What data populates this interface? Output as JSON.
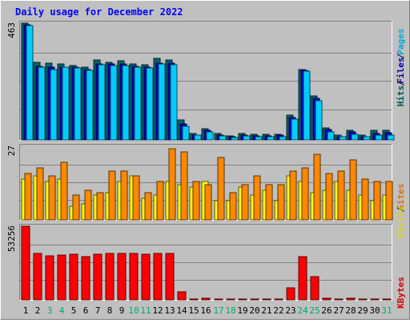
{
  "chart_data": {
    "type": "bar",
    "title": "Daily usage for December 2022",
    "days": [
      "1",
      "2",
      "3",
      "4",
      "5",
      "6",
      "7",
      "8",
      "9",
      "10",
      "11",
      "12",
      "13",
      "14",
      "15",
      "16",
      "17",
      "18",
      "19",
      "20",
      "21",
      "22",
      "23",
      "24",
      "25",
      "26",
      "27",
      "28",
      "29",
      "30",
      "31"
    ],
    "weekend_days": [
      "3",
      "4",
      "10",
      "11",
      "17",
      "18",
      "24",
      "25",
      "31"
    ],
    "panels": [
      {
        "id": "hits",
        "max_label": "463",
        "ylim": [
          0,
          463
        ],
        "legend": [
          "Pages",
          "Files",
          "Hits"
        ],
        "series": [
          {
            "name": "Hits",
            "color": "#006666",
            "values": [
              463,
              307,
              303,
              302,
              294,
              290,
              317,
              309,
              315,
              300,
              298,
              325,
              318,
              78,
              24,
              45,
              25,
              16,
              24,
              22,
              21,
              22,
              98,
              280,
              174,
              48,
              20,
              39,
              20,
              37,
              37
            ]
          },
          {
            "name": "Files",
            "color": "#0000cc",
            "values": [
              458,
              293,
              287,
              290,
              288,
              280,
              302,
              300,
              302,
              293,
              290,
              304,
              303,
              62,
              20,
              38,
              20,
              12,
              20,
              16,
              16,
              18,
              88,
              277,
              164,
              41,
              13,
              32,
              13,
              25,
              27
            ]
          },
          {
            "name": "Pages",
            "color": "#00ccff",
            "values": [
              455,
              287,
              280,
              287,
              285,
              275,
              297,
              294,
              296,
              290,
              286,
              302,
              297,
              55,
              18,
              32,
              16,
              10,
              16,
              14,
              13,
              13,
              82,
              273,
              155,
              33,
              12,
              23,
              12,
              18,
              20
            ]
          }
        ]
      },
      {
        "id": "visits",
        "max_label": "27",
        "ylim": [
          0,
          27
        ],
        "legend": [
          "Sites",
          "Visits"
        ],
        "series": [
          {
            "name": "Visits",
            "color": "#ffff00",
            "values": [
              15,
              16,
              14,
              15,
              5,
              6,
              9,
              10,
              14,
              16,
              8,
              9,
              14,
              13,
              12,
              14,
              7,
              7,
              12,
              9,
              11,
              7,
              16,
              14,
              10,
              11,
              14,
              11,
              9,
              7,
              9
            ]
          },
          {
            "name": "Sites",
            "color": "#ff8800",
            "values": [
              17,
              19,
              16,
              21,
              9,
              11,
              10,
              18,
              18,
              16,
              10,
              14,
              26,
              25,
              14,
              13,
              23,
              10,
              13,
              16,
              13,
              13,
              18,
              19,
              24,
              17,
              18,
              22,
              15,
              14,
              14
            ]
          }
        ]
      },
      {
        "id": "kbytes",
        "max_label": "53256",
        "ylim": [
          0,
          53256
        ],
        "legend": [
          "KBytes"
        ],
        "series": [
          {
            "name": "KBytes",
            "color": "#ff0000",
            "values": [
              53256,
              33500,
              31800,
              32700,
              33000,
              31000,
              33200,
              33700,
              33700,
              33400,
              33000,
              33400,
              33700,
              5500,
              800,
              1400,
              700,
              300,
              600,
              400,
              400,
              500,
              8800,
              31000,
              16800,
              900,
              400,
              1400,
              500,
              500,
              500
            ]
          }
        ]
      }
    ]
  }
}
